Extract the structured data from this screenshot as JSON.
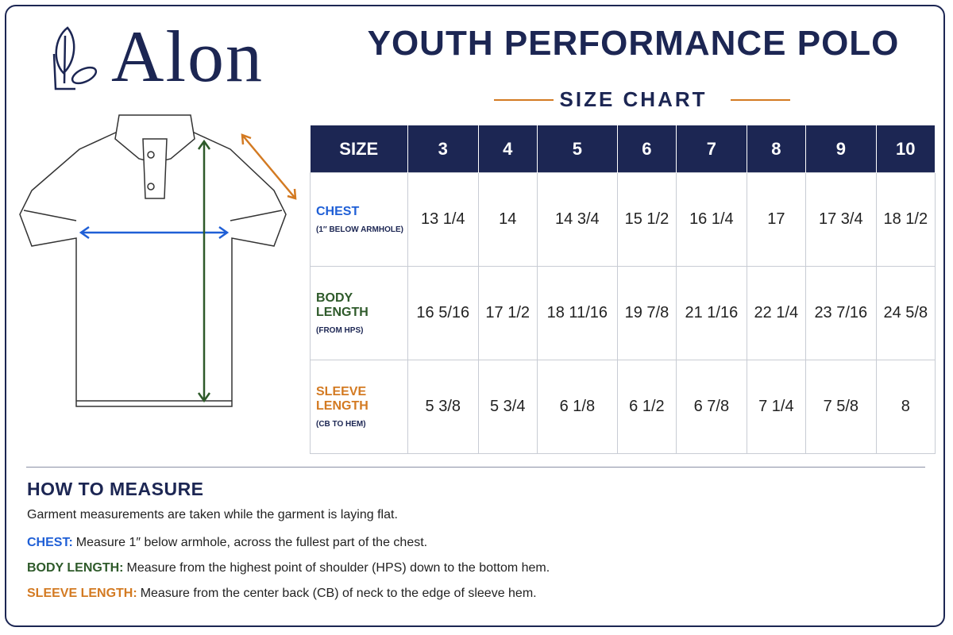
{
  "brand": "Alon",
  "header": {
    "title": "YOUTH PERFORMANCE POLO",
    "subtitle": "SIZE CHART"
  },
  "table": {
    "columns": [
      "SIZE",
      "3",
      "4",
      "5",
      "6",
      "7",
      "8",
      "9",
      "10"
    ],
    "rows": [
      {
        "label": "CHEST",
        "note": "(1″ BELOW ARMHOLE)",
        "cells": [
          "13 1/4",
          "14",
          "14 3/4",
          "15 1/2",
          "16 1/4",
          "17",
          "17 3/4",
          "18 1/2"
        ]
      },
      {
        "label": "BODY LENGTH",
        "note": "(FROM HPS)",
        "cells": [
          "16 5/16",
          "17 1/2",
          "18 11/16",
          "19 7/8",
          "21 1/16",
          "22 1/4",
          "23 7/16",
          "24 5/8"
        ]
      },
      {
        "label": "SLEEVE LENGTH",
        "note": "(CB TO HEM)",
        "cells": [
          "5 3/8",
          "5 3/4",
          "6 1/8",
          "6 1/2",
          "6 7/8",
          "7 1/4",
          "7 5/8",
          "8"
        ]
      }
    ]
  },
  "how_to_measure": {
    "title": "HOW TO MEASURE",
    "intro": "Garment measurements are taken while the garment is laying flat.",
    "items": [
      {
        "term": "CHEST:",
        "text": "Measure 1″ below armhole, across the fullest part of the chest."
      },
      {
        "term": "BODY LENGTH:",
        "text": "Measure from the highest point of shoulder (HPS) down to the bottom hem."
      },
      {
        "term": "SLEEVE LENGTH:",
        "text": "Measure from the center back (CB) of neck to the edge of sleeve hem."
      }
    ]
  }
}
